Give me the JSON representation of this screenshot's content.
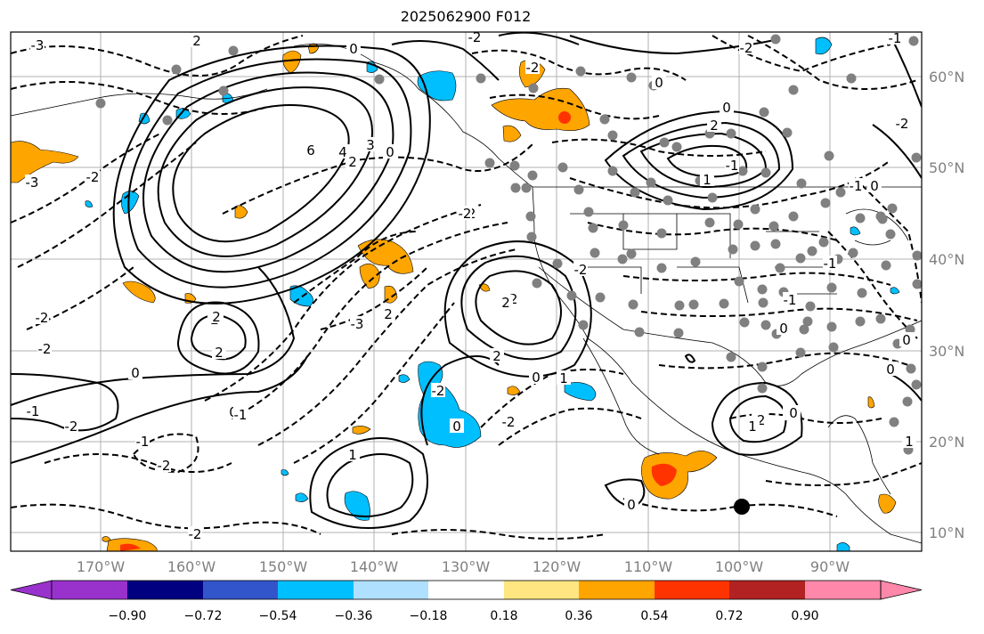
{
  "title": "2025062900 F012",
  "map": {
    "lat_labels": [
      "60°N",
      "50°N",
      "40°N",
      "30°N",
      "20°N",
      "10°N"
    ],
    "lon_labels": [
      "170°W",
      "160°W",
      "150°W",
      "140°W",
      "130°W",
      "120°W",
      "110°W",
      "100°W",
      "90°W"
    ],
    "contour_labels": [
      "-3",
      "-2",
      "2",
      "0",
      "-2",
      "-2",
      "0",
      "-2",
      "-3",
      "-2",
      "6",
      "4",
      "2",
      "3",
      "0",
      "-2",
      "2",
      "3",
      "2",
      "0",
      "-2",
      "-1",
      "-2",
      "-1",
      "0",
      "-1",
      "-2",
      "2",
      "2",
      "-3",
      "-2",
      "2",
      "-2",
      "2",
      "0",
      "1",
      "-1",
      "-1",
      "0",
      "-2",
      "1",
      "-1",
      "-2",
      "0",
      "1",
      "-2",
      "0",
      "0",
      "1",
      "0",
      "2",
      "-2",
      "0",
      "-2",
      "-1",
      "0",
      "0",
      "1",
      "-1",
      "0",
      "-2"
    ],
    "colors": {
      "positive_orange": "#ffa500",
      "positive_red": "#ff3300",
      "negative_cyan": "#00bfff",
      "station_dot": "#808080",
      "grid": "#b0b0b0"
    }
  },
  "colorbar": {
    "ticks": [
      "−0.90",
      "−0.72",
      "−0.54",
      "−0.36",
      "−0.18",
      "0.18",
      "0.36",
      "0.54",
      "0.72",
      "0.90"
    ],
    "colors": [
      "#9932cc",
      "#9932cc",
      "#000080",
      "#3355cc",
      "#00bfff",
      "#b0e0ff",
      "#ffffff",
      "#ffe680",
      "#ffa500",
      "#ff3300",
      "#b22222",
      "#ff88aa",
      "#ff88aa"
    ]
  }
}
